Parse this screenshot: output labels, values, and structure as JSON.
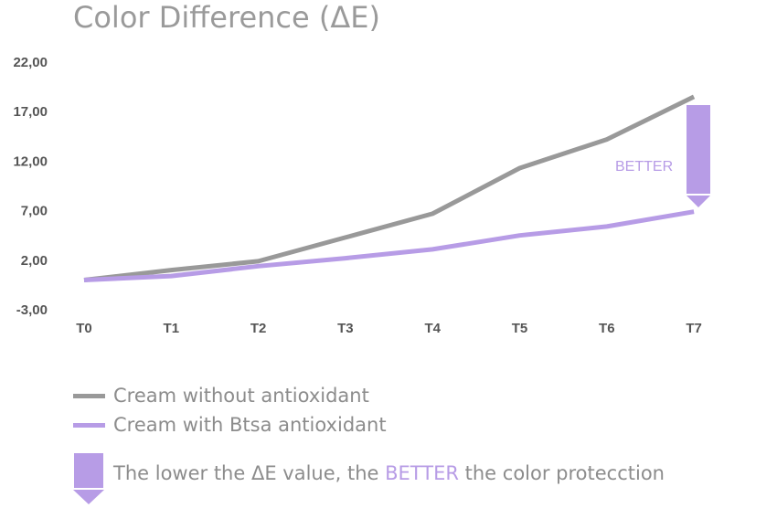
{
  "chart_data": {
    "type": "line",
    "title": "Color Difference (ΔE)",
    "categories": [
      "T0",
      "T1",
      "T2",
      "T3",
      "T4",
      "T5",
      "T6",
      "T7"
    ],
    "y_ticks": [
      "22,00",
      "17,00",
      "12,00",
      "7,00",
      "2,00",
      "-3,00"
    ],
    "ylim": [
      -3,
      22
    ],
    "grid": false,
    "series": [
      {
        "name": "Cream without antioxidant",
        "color": "#999999",
        "values": [
          0.0,
          1.0,
          1.9,
          4.3,
          6.7,
          11.3,
          14.2,
          18.5
        ]
      },
      {
        "name": "Cream with Btsa antioxidant",
        "color": "#b79ce6",
        "values": [
          0.0,
          0.4,
          1.4,
          2.2,
          3.1,
          4.5,
          5.4,
          6.9
        ]
      }
    ],
    "annotation": {
      "label": "BETTER",
      "color": "#b79ce6"
    }
  },
  "note": {
    "before": "The lower the ΔE value, the ",
    "highlight": "BETTER",
    "after": " the color protecction"
  }
}
